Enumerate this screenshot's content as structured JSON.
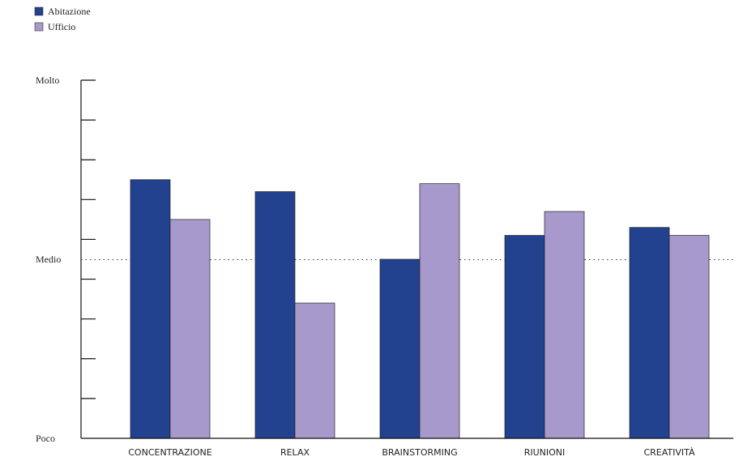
{
  "chart_data": {
    "type": "bar",
    "title": "",
    "xlabel": "",
    "ylabel": "",
    "categories": [
      "CONCENTRAZIONE",
      "RELAX",
      "BRAINSTORMING",
      "RIUNIONI",
      "CREATIVITÀ"
    ],
    "series": [
      {
        "name": "Abitazione",
        "color": "#22418f",
        "values": [
          6.5,
          6.2,
          4.5,
          5.1,
          5.3
        ]
      },
      {
        "name": "Ufficio",
        "color": "#a899cc",
        "values": [
          5.5,
          3.4,
          6.4,
          5.7,
          5.1
        ]
      }
    ],
    "ylim": [
      0,
      9
    ],
    "y_labels": [
      {
        "value": 0,
        "text": "Poco"
      },
      {
        "value": 4.5,
        "text": "Medio"
      },
      {
        "value": 9,
        "text": "Molto"
      }
    ],
    "y_ticks": [
      1,
      2,
      3,
      4,
      5,
      6,
      7,
      8,
      9
    ],
    "reference_line": {
      "value": 4.5,
      "style": "dotted"
    },
    "grid": false,
    "legend_position": "top-left"
  }
}
